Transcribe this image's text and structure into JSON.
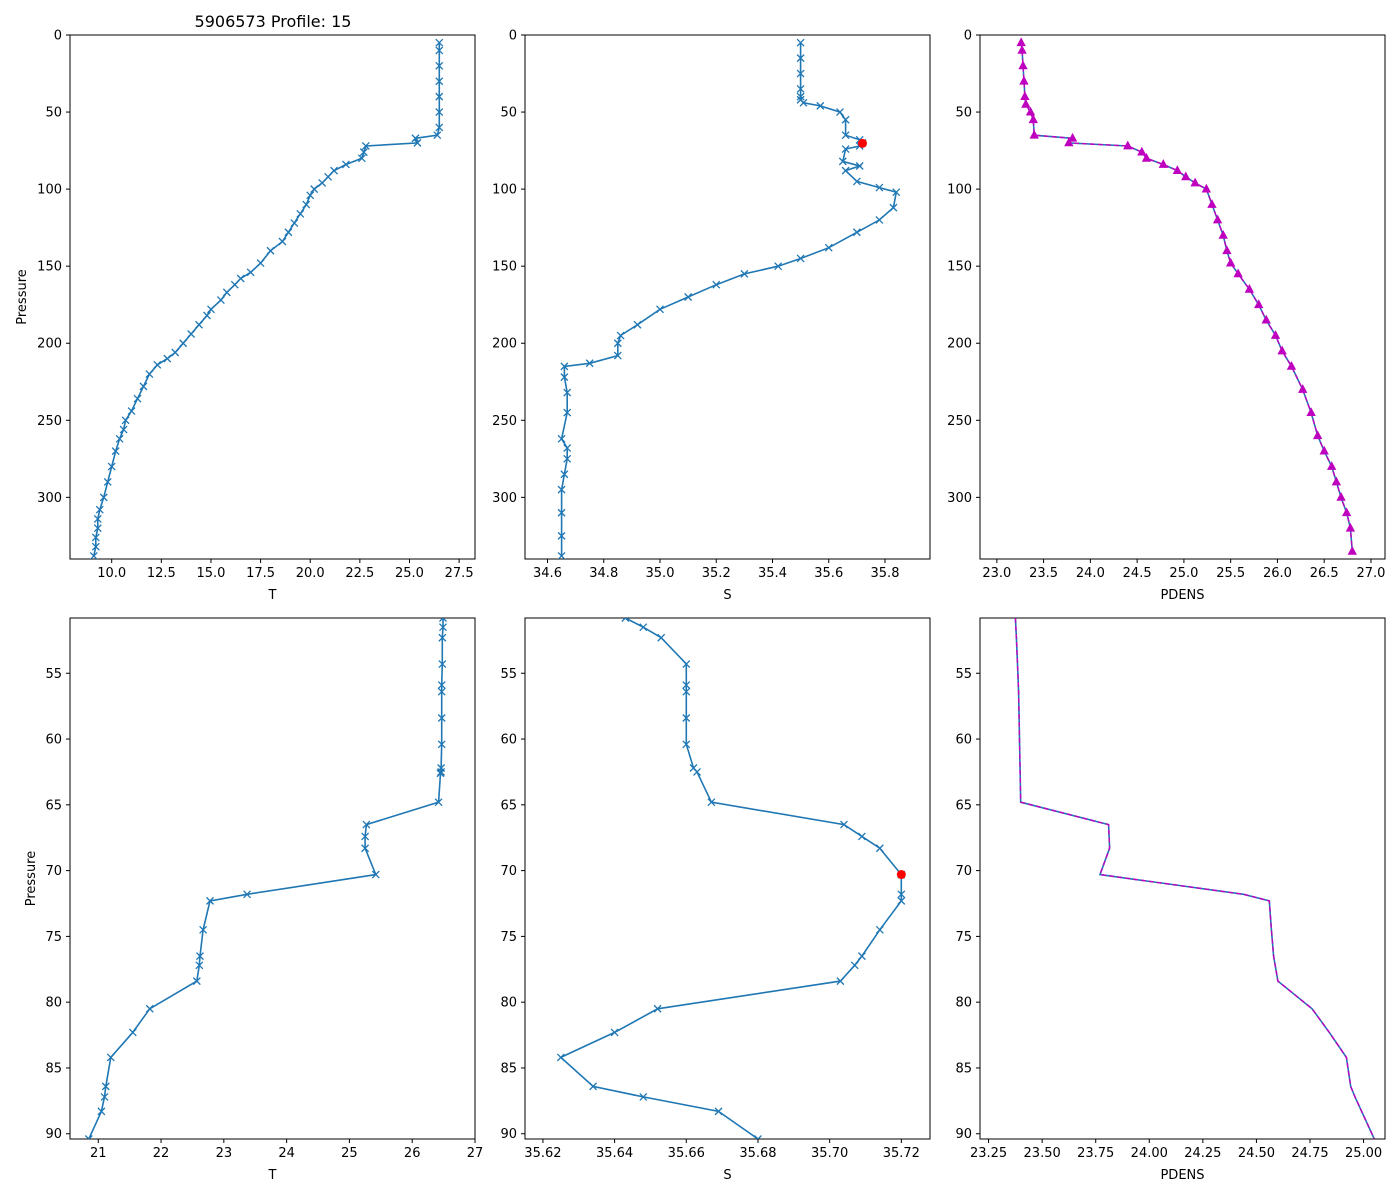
{
  "figure": {
    "title": "5906573 Profile: 15",
    "colors": {
      "line": "#1f77b4",
      "density": "#bf00bf",
      "flag": "#ff0000",
      "axis": "#000000"
    }
  },
  "chart_data": [
    {
      "id": "top-t",
      "type": "line",
      "xlabel": "T",
      "ylabel": "Pressure",
      "xlim": [
        7.9,
        28.3
      ],
      "ylim": [
        340,
        0
      ],
      "xticks": [
        10.0,
        12.5,
        15.0,
        17.5,
        20.0,
        22.5,
        25.0,
        27.5
      ],
      "xtick_labels": [
        "10.0",
        "12.5",
        "15.0",
        "17.5",
        "20.0",
        "22.5",
        "25.0",
        "27.5"
      ],
      "yticks": [
        0,
        50,
        100,
        150,
        200,
        250,
        300
      ],
      "ytick_labels": [
        "0",
        "50",
        "100",
        "150",
        "200",
        "250",
        "300"
      ],
      "marker": "x",
      "series": [
        {
          "name": "T",
          "x": [
            26.5,
            26.5,
            26.5,
            26.5,
            26.5,
            26.5,
            26.5,
            26.4,
            25.3,
            25.4,
            22.8,
            22.7,
            22.6,
            21.8,
            21.2,
            20.9,
            20.6,
            20.2,
            20.0,
            19.8,
            19.5,
            19.2,
            18.9,
            18.6,
            18.0,
            17.5,
            17.0,
            16.5,
            16.2,
            15.8,
            15.5,
            15.0,
            14.8,
            14.4,
            14.0,
            13.6,
            13.2,
            12.8,
            12.3,
            11.9,
            11.6,
            11.3,
            11.0,
            10.7,
            10.6,
            10.4,
            10.2,
            10.0,
            9.8,
            9.6,
            9.4,
            9.3,
            9.3,
            9.2,
            9.2,
            9.1
          ],
          "y": [
            5,
            10,
            20,
            30,
            40,
            50,
            60,
            65,
            67,
            70,
            72,
            76,
            80,
            84,
            88,
            92,
            96,
            100,
            104,
            110,
            116,
            122,
            128,
            134,
            140,
            148,
            154,
            158,
            162,
            167,
            172,
            178,
            182,
            188,
            194,
            200,
            206,
            210,
            214,
            220,
            228,
            236,
            244,
            250,
            256,
            262,
            270,
            280,
            290,
            300,
            308,
            314,
            320,
            326,
            332,
            338
          ]
        }
      ],
      "flags": []
    },
    {
      "id": "top-s",
      "type": "line",
      "xlabel": "S",
      "ylabel": "",
      "xlim": [
        34.52,
        35.96
      ],
      "ylim": [
        340,
        0
      ],
      "xticks": [
        34.6,
        34.8,
        35.0,
        35.2,
        35.4,
        35.6,
        35.8
      ],
      "xtick_labels": [
        "34.6",
        "34.8",
        "35.0",
        "35.2",
        "35.4",
        "35.6",
        "35.8"
      ],
      "yticks": [
        0,
        50,
        100,
        150,
        200,
        250,
        300
      ],
      "ytick_labels": [
        "0",
        "50",
        "100",
        "150",
        "200",
        "250",
        "300"
      ],
      "marker": "x",
      "series": [
        {
          "name": "S",
          "x": [
            35.5,
            35.5,
            35.5,
            35.5,
            35.5,
            35.5,
            35.51,
            35.57,
            35.64,
            35.66,
            35.66,
            35.71,
            35.72,
            35.71,
            35.66,
            35.65,
            35.71,
            35.66,
            35.7,
            35.78,
            35.84,
            35.83,
            35.78,
            35.7,
            35.6,
            35.5,
            35.42,
            35.3,
            35.2,
            35.1,
            35.0,
            34.92,
            34.86,
            34.85,
            34.85,
            34.75,
            34.66,
            34.66,
            34.67,
            34.67,
            34.65,
            34.67,
            34.67,
            34.66,
            34.65,
            34.65,
            34.65,
            34.65
          ],
          "y": [
            5,
            15,
            25,
            35,
            40,
            42,
            44,
            46,
            50,
            55,
            65,
            68,
            70,
            72,
            74,
            82,
            85,
            88,
            95,
            99,
            102,
            112,
            120,
            128,
            138,
            145,
            150,
            155,
            162,
            170,
            178,
            188,
            195,
            200,
            208,
            213,
            215,
            222,
            232,
            245,
            262,
            268,
            275,
            285,
            295,
            310,
            325,
            338
          ]
        }
      ],
      "flags": [
        {
          "x": 35.72,
          "y": 70.3
        }
      ]
    },
    {
      "id": "top-pdens",
      "type": "line",
      "xlabel": "PDENS",
      "ylabel": "",
      "xlim": [
        22.82,
        27.15
      ],
      "ylim": [
        340,
        0
      ],
      "xticks": [
        23.0,
        23.5,
        24.0,
        24.5,
        25.0,
        25.5,
        26.0,
        26.5,
        27.0
      ],
      "xtick_labels": [
        "23.0",
        "23.5",
        "24.0",
        "24.5",
        "25.0",
        "25.5",
        "26.0",
        "26.5",
        "27.0"
      ],
      "yticks": [
        0,
        50,
        100,
        150,
        200,
        250,
        300
      ],
      "ytick_labels": [
        "0",
        "50",
        "100",
        "150",
        "200",
        "250",
        "300"
      ],
      "marker": "^",
      "series": [
        {
          "name": "PDENS",
          "x": [
            23.26,
            23.27,
            23.28,
            23.29,
            23.3,
            23.31,
            23.36,
            23.39,
            23.4,
            23.81,
            23.77,
            24.4,
            24.55,
            24.6,
            24.78,
            24.93,
            25.02,
            25.12,
            25.24,
            25.3,
            25.36,
            25.42,
            25.46,
            25.5,
            25.58,
            25.7,
            25.8,
            25.88,
            25.98,
            26.05,
            26.15,
            26.27,
            26.36,
            26.43,
            26.5,
            26.58,
            26.63,
            26.68,
            26.74,
            26.78,
            26.8
          ],
          "y": [
            5,
            10,
            20,
            30,
            40,
            45,
            50,
            55,
            65,
            67,
            70,
            72,
            76,
            80,
            84,
            88,
            92,
            96,
            100,
            110,
            120,
            130,
            140,
            148,
            155,
            165,
            175,
            185,
            195,
            205,
            215,
            230,
            245,
            260,
            270,
            280,
            290,
            300,
            310,
            320,
            335
          ]
        }
      ],
      "flags": []
    },
    {
      "id": "bottom-t",
      "type": "line",
      "xlabel": "T",
      "ylabel": "Pressure",
      "xlim": [
        20.55,
        27.0
      ],
      "ylim": [
        90.4,
        50.8
      ],
      "xticks": [
        21,
        22,
        23,
        24,
        25,
        26,
        27
      ],
      "xtick_labels": [
        "21",
        "22",
        "23",
        "24",
        "25",
        "26",
        "27"
      ],
      "yticks": [
        55,
        60,
        65,
        70,
        75,
        80,
        85,
        90
      ],
      "ytick_labels": [
        "55",
        "60",
        "65",
        "70",
        "75",
        "80",
        "85",
        "90"
      ],
      "marker": "x",
      "series": [
        {
          "name": "T",
          "x": [
            26.49,
            26.49,
            26.48,
            26.48,
            26.47,
            26.47,
            26.47,
            26.47,
            26.46,
            26.46,
            26.45,
            26.42,
            25.27,
            25.25,
            25.25,
            25.42,
            23.37,
            22.78,
            22.67,
            22.62,
            22.61,
            22.57,
            21.82,
            21.55,
            21.2,
            21.12,
            21.1,
            21.05,
            20.85
          ],
          "y": [
            50.8,
            51.5,
            52.3,
            54.3,
            55.9,
            56.4,
            58.4,
            60.4,
            62.2,
            62.5,
            62.6,
            64.8,
            66.5,
            67.4,
            68.3,
            70.3,
            71.8,
            72.3,
            74.5,
            76.5,
            77.2,
            78.4,
            80.5,
            82.3,
            84.2,
            86.4,
            87.2,
            88.3,
            90.4
          ]
        }
      ],
      "flags": []
    },
    {
      "id": "bottom-s",
      "type": "line",
      "xlabel": "S",
      "ylabel": "",
      "xlim": [
        35.615,
        35.728
      ],
      "ylim": [
        90.4,
        50.8
      ],
      "xticks": [
        35.62,
        35.64,
        35.66,
        35.68,
        35.7,
        35.72
      ],
      "xtick_labels": [
        "35.62",
        "35.64",
        "35.66",
        "35.68",
        "35.70",
        "35.72"
      ],
      "yticks": [
        55,
        60,
        65,
        70,
        75,
        80,
        85,
        90
      ],
      "ytick_labels": [
        "55",
        "60",
        "65",
        "70",
        "75",
        "80",
        "85",
        "90"
      ],
      "marker": "x",
      "series": [
        {
          "name": "S",
          "x": [
            35.643,
            35.648,
            35.653,
            35.66,
            35.66,
            35.66,
            35.66,
            35.66,
            35.662,
            35.663,
            35.667,
            35.704,
            35.709,
            35.714,
            35.72,
            35.72,
            35.72,
            35.714,
            35.709,
            35.707,
            35.703,
            35.652,
            35.64,
            35.625,
            35.634,
            35.648,
            35.669,
            35.68
          ],
          "y": [
            50.8,
            51.5,
            52.3,
            54.3,
            55.9,
            56.4,
            58.4,
            60.4,
            62.2,
            62.5,
            64.8,
            66.5,
            67.4,
            68.3,
            70.3,
            71.8,
            72.3,
            74.5,
            76.5,
            77.2,
            78.4,
            80.5,
            82.3,
            84.2,
            86.4,
            87.2,
            88.3,
            90.4
          ]
        }
      ],
      "flags": [
        {
          "x": 35.72,
          "y": 70.3
        }
      ]
    },
    {
      "id": "bottom-pdens",
      "type": "line",
      "xlabel": "PDENS",
      "ylabel": "",
      "xlim": [
        23.21,
        25.1
      ],
      "ylim": [
        90.4,
        50.8
      ],
      "xticks": [
        23.25,
        23.5,
        23.75,
        24.0,
        24.25,
        24.5,
        24.75,
        25.0
      ],
      "xtick_labels": [
        "23.25",
        "23.50",
        "23.75",
        "24.00",
        "24.25",
        "24.50",
        "24.75",
        "25.00"
      ],
      "yticks": [
        55,
        60,
        65,
        70,
        75,
        80,
        85,
        90
      ],
      "ytick_labels": [
        "55",
        "60",
        "65",
        "70",
        "75",
        "80",
        "85",
        "90"
      ],
      "marker": "dashed",
      "series": [
        {
          "name": "PDENS",
          "x": [
            23.375,
            23.38,
            23.385,
            23.39,
            23.395,
            23.4,
            23.81,
            23.815,
            23.77,
            24.44,
            24.56,
            24.57,
            24.58,
            24.6,
            24.76,
            24.84,
            24.92,
            24.94,
            24.96,
            25.05
          ],
          "y": [
            50.8,
            52.3,
            54.3,
            56.4,
            60.4,
            64.8,
            66.5,
            68.3,
            70.3,
            71.8,
            72.3,
            74.5,
            76.5,
            78.4,
            80.5,
            82.3,
            84.2,
            86.4,
            87.2,
            90.4
          ]
        }
      ],
      "flags": []
    }
  ]
}
